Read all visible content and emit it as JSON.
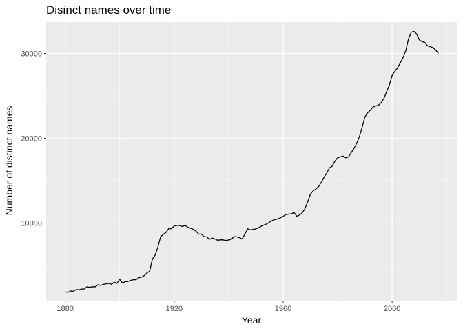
{
  "chart_data": {
    "type": "line",
    "title": "Disinct names over time",
    "xlabel": "Year",
    "ylabel": "Number of distinct names",
    "xlim": [
      1873,
      2024
    ],
    "ylim": [
      850,
      33700
    ],
    "x_ticks": [
      1880,
      1920,
      1960,
      2000
    ],
    "y_ticks": [
      10000,
      20000,
      30000
    ],
    "x_minor_ticks": [
      1900,
      1940,
      1980,
      2020
    ],
    "y_minor_ticks": [
      15000,
      25000,
      5000
    ],
    "grid": true,
    "legend": "none",
    "colors": {
      "panel": "#ebebeb",
      "grid": "#ffffff",
      "line": "#000000"
    },
    "series": [
      {
        "x": [
          1880,
          1881,
          1882,
          1883,
          1884,
          1885,
          1886,
          1887,
          1888,
          1889,
          1890,
          1891,
          1892,
          1893,
          1894,
          1895,
          1896,
          1897,
          1898,
          1899,
          1900,
          1901,
          1902,
          1903,
          1904,
          1905,
          1906,
          1907,
          1908,
          1909,
          1910,
          1911,
          1912,
          1913,
          1914,
          1915,
          1916,
          1917,
          1918,
          1919,
          1920,
          1921,
          1922,
          1923,
          1924,
          1925,
          1926,
          1927,
          1928,
          1929,
          1930,
          1931,
          1932,
          1933,
          1934,
          1935,
          1936,
          1937,
          1938,
          1939,
          1940,
          1941,
          1942,
          1943,
          1944,
          1945,
          1946,
          1947,
          1948,
          1949,
          1950,
          1951,
          1952,
          1953,
          1954,
          1955,
          1956,
          1957,
          1958,
          1959,
          1960,
          1961,
          1962,
          1963,
          1964,
          1965,
          1966,
          1967,
          1968,
          1969,
          1970,
          1971,
          1972,
          1973,
          1974,
          1975,
          1976,
          1977,
          1978,
          1979,
          1980,
          1981,
          1982,
          1983,
          1984,
          1985,
          1986,
          1987,
          1988,
          1989,
          1990,
          1991,
          1992,
          1993,
          1994,
          1995,
          1996,
          1997,
          1998,
          1999,
          2000,
          2001,
          2002,
          2003,
          2004,
          2005,
          2006,
          2007,
          2008,
          2009,
          2010,
          2011,
          2012,
          2013,
          2014,
          2015,
          2016,
          2017
        ],
        "values": [
          1890,
          1830,
          1990,
          1970,
          2160,
          2130,
          2220,
          2230,
          2490,
          2420,
          2490,
          2480,
          2720,
          2650,
          2760,
          2830,
          2880,
          2780,
          3030,
          2890,
          3380,
          2920,
          3090,
          3110,
          3240,
          3320,
          3320,
          3570,
          3630,
          3800,
          4130,
          4320,
          5760,
          6220,
          7140,
          8380,
          8670,
          8900,
          9350,
          9330,
          9650,
          9730,
          9700,
          9590,
          9730,
          9510,
          9390,
          9260,
          9050,
          8700,
          8700,
          8390,
          8360,
          8090,
          8240,
          8110,
          7970,
          8030,
          8020,
          7940,
          8010,
          8100,
          8400,
          8380,
          8270,
          8130,
          8750,
          9320,
          9200,
          9250,
          9320,
          9450,
          9640,
          9780,
          9900,
          10100,
          10300,
          10420,
          10490,
          10620,
          10800,
          11000,
          11050,
          11080,
          11250,
          10800,
          10950,
          11200,
          11700,
          12500,
          13400,
          13800,
          14000,
          14300,
          14800,
          15400,
          15900,
          16500,
          16700,
          17300,
          17700,
          17800,
          17900,
          17700,
          17800,
          18300,
          18800,
          19400,
          20200,
          21300,
          22500,
          23000,
          23300,
          23700,
          23800,
          23900,
          24200,
          24700,
          25500,
          26300,
          27400,
          27900,
          28300,
          28900,
          29500,
          30300,
          31700,
          32500,
          32600,
          32300,
          31600,
          31400,
          31300,
          30900,
          30800,
          30700,
          30400,
          30000
        ]
      }
    ]
  }
}
